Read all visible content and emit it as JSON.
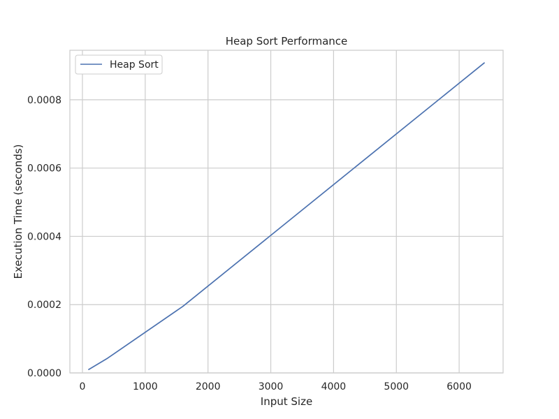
{
  "chart_data": {
    "type": "line",
    "title": "Heap Sort Performance",
    "xlabel": "Input Size",
    "ylabel": "Execution Time (seconds)",
    "xlim": [
      -200,
      6700
    ],
    "ylim": [
      0,
      0.000945
    ],
    "xticks": [
      0,
      1000,
      2000,
      3000,
      4000,
      5000,
      6000
    ],
    "xtick_labels": [
      "0",
      "1000",
      "2000",
      "3000",
      "4000",
      "5000",
      "6000"
    ],
    "yticks": [
      0,
      0.0002,
      0.0004,
      0.0006,
      0.0008
    ],
    "ytick_labels": [
      "0.0000",
      "0.0002",
      "0.0004",
      "0.0006",
      "0.0008"
    ],
    "grid": true,
    "legend": {
      "position": "top-left"
    },
    "series": [
      {
        "name": "Heap Sort",
        "color": "#4c72b0",
        "x": [
          100,
          400,
          1600,
          6400
        ],
        "y": [
          1e-05,
          4.3e-05,
          0.000195,
          0.000908
        ]
      }
    ]
  }
}
